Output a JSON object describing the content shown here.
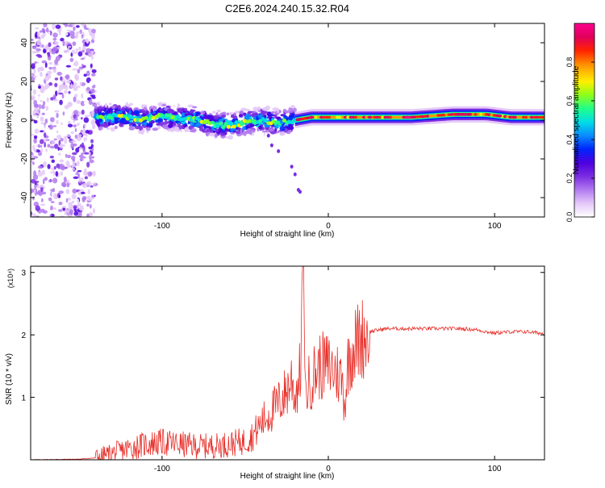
{
  "title": "C2E6.2024.240.15.32.R04",
  "colors": {
    "snr_line": "#e8302a",
    "colormap": [
      "#ffffff",
      "#e4c8f8",
      "#b27af0",
      "#7a2de0",
      "#4d00e0",
      "#0025ff",
      "#0a8bff",
      "#00dde6",
      "#21ff8a",
      "#8dff1a",
      "#ffee00",
      "#ff9900",
      "#ff2200",
      "#e0005a",
      "#ff0090"
    ]
  },
  "chart_data": [
    {
      "type": "heatmap",
      "title": "C2E6.2024.240.15.32.R04",
      "xlabel": "Height of straight line (km)",
      "ylabel": "Frequency (Hz)",
      "xlim": [
        -179,
        130
      ],
      "ylim": [
        -50,
        50
      ],
      "x_ticks": [
        "-100",
        "0",
        "100"
      ],
      "x_tick_values": [
        -100,
        0,
        100
      ],
      "y_ticks": [
        "40",
        "20",
        "0",
        "-20",
        "-40"
      ],
      "y_tick_values": [
        40,
        20,
        0,
        -20,
        -40
      ],
      "colorbar": {
        "label": "Normalized spectral amplitude",
        "range": [
          0,
          1
        ],
        "ticks": [
          "0.0",
          "0.2",
          "0.4",
          "0.6",
          "0.8"
        ],
        "tick_values": [
          0.0,
          0.2,
          0.4,
          0.6,
          0.8
        ]
      },
      "regions": [
        {
          "x_range": [
            -179,
            -140
          ],
          "freq_range": [
            -50,
            50
          ],
          "amplitude": 0.15
        },
        {
          "x_range": [
            -140,
            -20
          ],
          "center_freq": 1,
          "spread_hz": 8,
          "amplitude": 0.6
        },
        {
          "x_range": [
            -20,
            130
          ],
          "center_freq": 1.5,
          "spread_hz": 3,
          "amplitude": 0.95
        }
      ],
      "ridge": [
        {
          "x": -140,
          "freq": 1.5
        },
        {
          "x": -125,
          "freq": 2
        },
        {
          "x": -110,
          "freq": 0.5
        },
        {
          "x": -100,
          "freq": 2
        },
        {
          "x": -90,
          "freq": 1
        },
        {
          "x": -80,
          "freq": 0.5
        },
        {
          "x": -70,
          "freq": -2
        },
        {
          "x": -60,
          "freq": -3
        },
        {
          "x": -50,
          "freq": -1
        },
        {
          "x": -40,
          "freq": 0
        },
        {
          "x": -30,
          "freq": -1.5
        },
        {
          "x": -20,
          "freq": 0
        },
        {
          "x": -10,
          "freq": 1.5
        },
        {
          "x": 0,
          "freq": 1.5
        },
        {
          "x": 20,
          "freq": 1.5
        },
        {
          "x": 50,
          "freq": 1.5
        },
        {
          "x": 75,
          "freq": 3
        },
        {
          "x": 95,
          "freq": 3
        },
        {
          "x": 110,
          "freq": 1.5
        },
        {
          "x": 130,
          "freq": 1.5
        }
      ]
    },
    {
      "type": "line",
      "xlabel": "Height of straight line (km)",
      "ylabel": "SNR (10 * v/v)",
      "y_multiplier_label": "(x10⁴)",
      "xlim": [
        -179,
        130
      ],
      "ylim": [
        0,
        3.1
      ],
      "x_ticks": [
        "-100",
        "0",
        "100"
      ],
      "x_tick_values": [
        -100,
        0,
        100
      ],
      "y_ticks": [
        "3",
        "2",
        "1"
      ],
      "y_tick_values": [
        3,
        2,
        1
      ],
      "series": [
        {
          "x": [
            -179,
            -150,
            -140,
            -130,
            -120,
            -110,
            -100,
            -90,
            -80,
            -70,
            -60,
            -50,
            -45,
            -40,
            -35,
            -30,
            -25,
            -22,
            -20,
            -17,
            -15,
            -14,
            -12,
            -10,
            -8,
            -5,
            0,
            5,
            8,
            10,
            12,
            15,
            20,
            25,
            30,
            35,
            40,
            50,
            60,
            70,
            80,
            90,
            95,
            100,
            110,
            120,
            130
          ],
          "y": [
            0.0,
            0.01,
            0.03,
            0.1,
            0.18,
            0.25,
            0.28,
            0.25,
            0.22,
            0.22,
            0.25,
            0.3,
            0.4,
            0.6,
            0.75,
            0.9,
            1.1,
            1.3,
            1.0,
            1.4,
            2.5,
            1.0,
            1.2,
            1.3,
            1.4,
            1.5,
            1.5,
            1.4,
            1.3,
            0.9,
            1.6,
            1.8,
            1.95,
            2.05,
            2.08,
            2.1,
            2.1,
            2.1,
            2.1,
            2.1,
            2.1,
            2.08,
            2.05,
            2.03,
            2.05,
            2.05,
            2.02
          ]
        }
      ]
    }
  ]
}
